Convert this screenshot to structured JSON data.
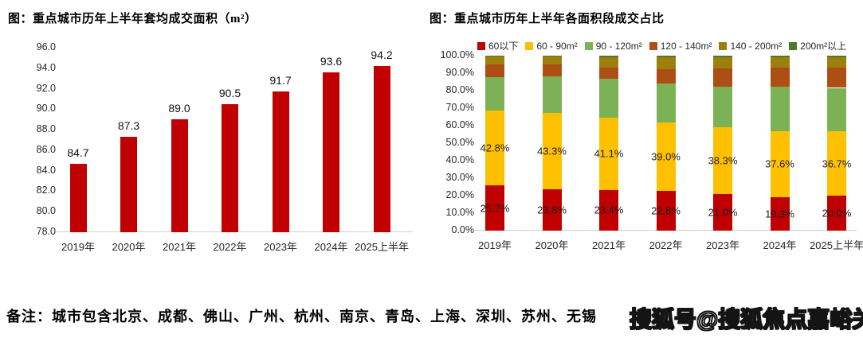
{
  "note": "备注：城市包含北京、成都、佛山、广州、杭州、南京、青岛、上海、深圳、苏州、无锡",
  "watermark": "搜狐号@搜狐焦点嘉峪关站",
  "colors": {
    "bar_red": "#c00000",
    "yellow": "#ffc000",
    "green": "#7cb155",
    "dark_orange": "#ad4e15",
    "olive": "#9c7f0d",
    "dark_green": "#4e7a23",
    "axis_line": "#cfcfcf"
  },
  "chart_data": [
    {
      "type": "bar",
      "title": "图：重点城市历年上半年套均成交面积（m²）",
      "categories": [
        "2019年",
        "2020年",
        "2021年",
        "2022年",
        "2023年",
        "2024年",
        "2025上半年"
      ],
      "values": [
        84.7,
        87.3,
        89.0,
        90.5,
        91.7,
        93.6,
        94.2
      ],
      "value_labels": [
        "84.7",
        "87.3",
        "89.0",
        "90.5",
        "91.7",
        "93.6",
        "94.2"
      ],
      "bar_color": "#c00000",
      "xlabel": "",
      "ylabel": "",
      "ylim": [
        78.0,
        96.0
      ],
      "ytick_labels": [
        "96.0",
        "94.0",
        "92.0",
        "90.0",
        "88.0",
        "86.0",
        "84.0",
        "82.0",
        "80.0",
        "78.0"
      ],
      "grid": false,
      "legend_position": "none"
    },
    {
      "type": "bar",
      "subtype": "stacked_percent",
      "title": "图：重点城市历年上半年各面积段成交占比",
      "categories": [
        "2019年",
        "2020年",
        "2021年",
        "2022年",
        "2023年",
        "2024年",
        "2025上半年"
      ],
      "series": [
        {
          "name": "60以下",
          "color": "#c00000",
          "values": [
            25.7,
            23.8,
            23.4,
            22.8,
            21.0,
            19.3,
            20.0
          ],
          "labels": [
            "25.7%",
            "23.8%",
            "23.4%",
            "22.8%",
            "21.0%",
            "19.3%",
            "20.0%"
          ]
        },
        {
          "name": "60 - 90m²",
          "color": "#ffc000",
          "values": [
            42.8,
            43.3,
            41.1,
            39.0,
            38.3,
            37.6,
            36.7
          ],
          "labels": [
            "42.8%",
            "43.3%",
            "41.1%",
            "39.0%",
            "38.3%",
            "37.6%",
            "36.7%"
          ]
        },
        {
          "name": "90 - 120m²",
          "color": "#7cb155",
          "values": [
            19.3,
            21.3,
            22.4,
            22.2,
            22.9,
            25.5,
            24.9
          ]
        },
        {
          "name": "120 - 140m²",
          "color": "#ad4e15",
          "values": [
            7.1,
            6.8,
            6.1,
            8.1,
            10.6,
            10.7,
            11.5
          ]
        },
        {
          "name": "140 - 200m²",
          "color": "#9c7f0d",
          "values": [
            4.6,
            4.3,
            5.9,
            6.8,
            6.4,
            6.1,
            5.8
          ]
        },
        {
          "name": "200m²以上",
          "color": "#4e7a23",
          "values": [
            0.5,
            0.5,
            1.1,
            1.1,
            0.8,
            0.8,
            1.1
          ]
        }
      ],
      "xlabel": "",
      "ylabel": "",
      "ylim": [
        0,
        100
      ],
      "ytick_labels": [
        "100.0%",
        "90.0%",
        "80.0%",
        "70.0%",
        "60.0%",
        "50.0%",
        "40.0%",
        "30.0%",
        "20.0%",
        "10.0%",
        "0.0%"
      ],
      "grid": false,
      "legend_position": "top"
    }
  ]
}
